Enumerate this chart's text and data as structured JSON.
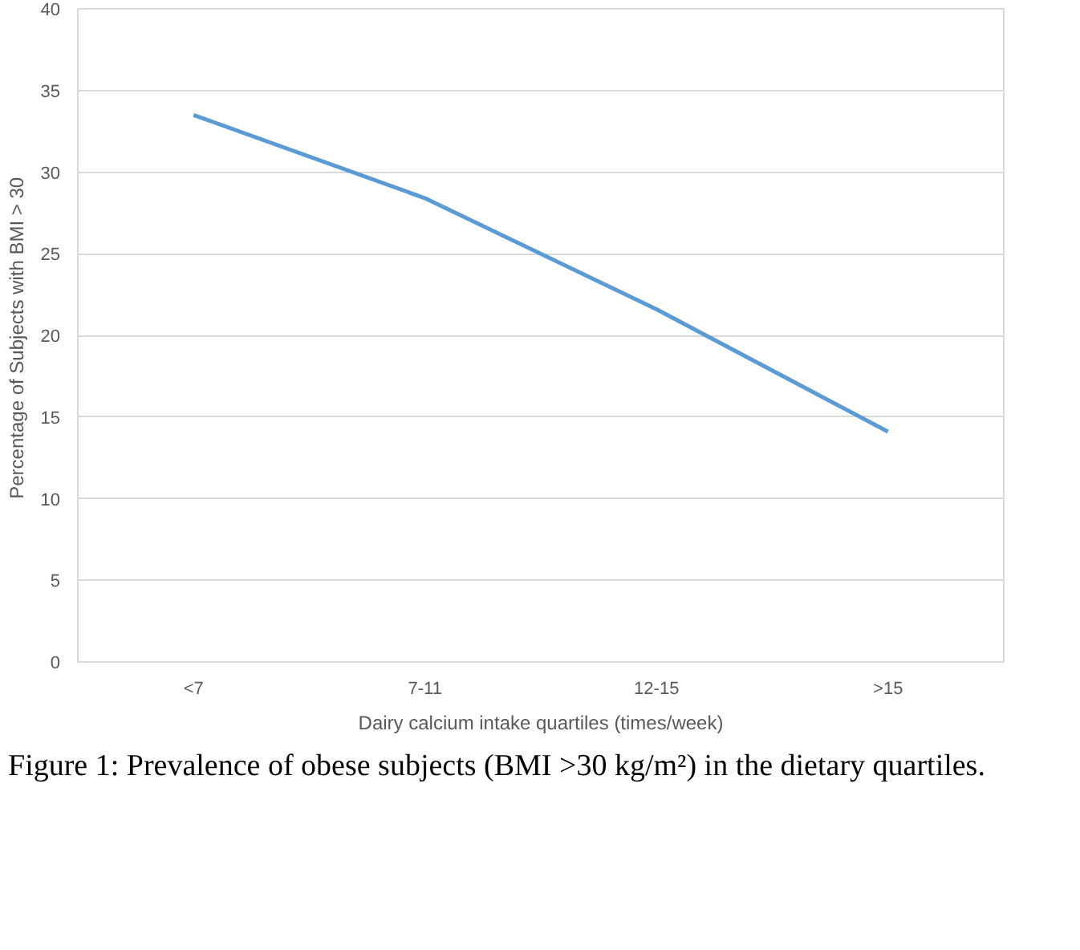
{
  "chart_data": {
    "type": "line",
    "xlabel": "Dairy calcium intake quartiles (times/week)",
    "ylabel": "Percentage of Subjects  with BMI > 30",
    "categories": [
      "<7",
      "7-11",
      "12-15",
      ">15"
    ],
    "series": [
      {
        "color": "#5b9bd5",
        "values": [
          33.5,
          28.4,
          21.6,
          14.1
        ]
      }
    ],
    "ylim": [
      0,
      40
    ],
    "yticks": [
      0,
      5,
      10,
      15,
      20,
      25,
      30,
      35,
      40
    ],
    "grid": "y",
    "marker": "none",
    "line_style": "solid",
    "annotations": [
      "Figure 1: Prevalence of obese subjects (BMI >30 kg/m²) in the dietary quartiles."
    ]
  }
}
